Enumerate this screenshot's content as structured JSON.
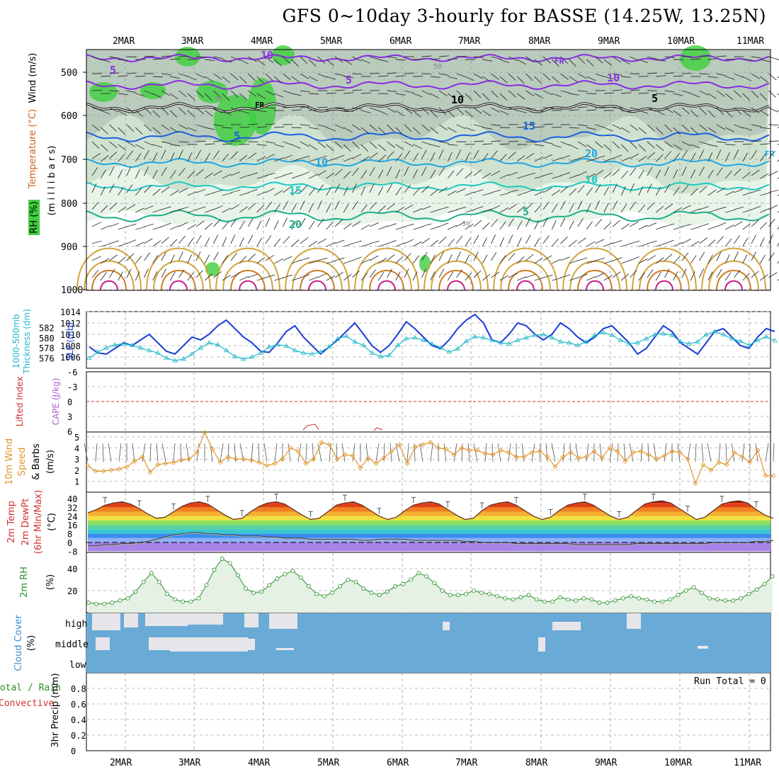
{
  "title": "GFS 0~10day 3-hourly for BASSE (14.25W, 13.25N)",
  "colors": {
    "rh": "#3ccf3c",
    "temp_iso": [
      "#8a2be2",
      "#1c5fe0",
      "#21a6e0",
      "#1ec8c0",
      "#1aaf8a",
      "#d4a23a",
      "#d07a20",
      "#c8208a"
    ],
    "slp": "#1a3ed6",
    "thick": "#1eb8c8",
    "wind10": "#e0962c",
    "rh2m": "#2a8f2a",
    "cloud_blue": "#6aaad6",
    "cloud_gray": "#e6e6ea",
    "li": "#d03030",
    "cape": "#b060d0",
    "temp_bands": [
      "#a884e8",
      "#8fb0f5",
      "#3a8cf0",
      "#3ac8d0",
      "#5ad0a0",
      "#8ce060",
      "#f0e040",
      "#f5b030",
      "#f08020",
      "#e04018",
      "#b01010"
    ]
  },
  "x_axis": {
    "labels": [
      "2MAR",
      "3MAR",
      "4MAR",
      "5MAR",
      "6MAR",
      "7MAR",
      "8MAR",
      "9MAR",
      "10MAR",
      "11MAR"
    ]
  },
  "panels": {
    "upper": {
      "ylabel_wind": "Wind (m/s)",
      "ylabel_temp": "Temperature (°C)",
      "ylabel_rh": "RH (%)",
      "ylabel_p": "(m i l l i b a r s)",
      "ticks": [
        "500",
        "600",
        "700",
        "800",
        "900",
        "1000"
      ],
      "iso_labels": [
        "10",
        "5",
        "FR",
        "5",
        "10",
        "15",
        "20",
        "10",
        "5",
        "FR",
        "5",
        "10",
        "15",
        "20",
        "10",
        "5",
        "FR"
      ],
      "rh_labels": [
        "50",
        "50",
        "30"
      ]
    },
    "slp": {
      "ylabel_thick": "Thickness (dm)",
      "ylabel_thick2": "1000-500mb",
      "ylabel_slp": "SLP (mb)",
      "left_ticks": [
        "582",
        "580",
        "578",
        "576"
      ],
      "right_ticks": [
        "1014",
        "1012",
        "1010",
        "1008",
        "1006"
      ]
    },
    "li": {
      "ylabel_li": "Lifted Index",
      "ylabel_cape": "CAPE (J/kg)",
      "ticks": [
        "-6",
        "-3",
        "0",
        "3",
        "6"
      ]
    },
    "wind10": {
      "ylabel": "10m Wind",
      "ylabel2": "Speed",
      "ylabel3": "& Barbs",
      "unit": "(m/s)",
      "ticks": [
        "5",
        "4",
        "3",
        "2",
        "1"
      ]
    },
    "temp2m": {
      "ylabel1": "2m Temp",
      "ylabel2": "2m DewPt",
      "ylabel3": "(6hr Min/Max)",
      "unit": "(°C)",
      "ticks": [
        "40",
        "32",
        "24",
        "16",
        "8",
        "0",
        "-8"
      ]
    },
    "rh2m": {
      "ylabel": "2m RH",
      "unit": "(%)",
      "ticks": [
        "40",
        "20"
      ]
    },
    "cloud": {
      "ylabel": "Cloud Cover",
      "unit": "(%)",
      "levels": [
        "high",
        "middle",
        "low"
      ]
    },
    "precip": {
      "ylabel1": "Total / Rain",
      "ylabel2": "Convective",
      "ylabel3": "3hr Precip (mm)",
      "ticks": [
        "0.8",
        "0.6",
        "0.4",
        "0.2",
        "0"
      ],
      "run_total": "Run Total = 0"
    }
  },
  "chart_data": [
    {
      "type": "line",
      "title": "SLP / 1000-500mb Thickness",
      "x_unit": "3-hourly steps from ~1MAR 12Z",
      "series": [
        {
          "name": "SLP (mb)",
          "values": [
            1007.8,
            1006.7,
            1006.5,
            1007.5,
            1008.5,
            1008.0,
            1009.0,
            1010.0,
            1008.5,
            1007.0,
            1006.5,
            1008.0,
            1009.5,
            1009.0,
            1010.0,
            1011.5,
            1012.5,
            1011.0,
            1009.5,
            1008.5,
            1007.0,
            1006.8,
            1008.5,
            1010.5,
            1011.5,
            1009.5,
            1008.0,
            1006.5,
            1007.8,
            1009.0,
            1010.5,
            1012.0,
            1010.0,
            1008.0,
            1006.8,
            1008.0,
            1010.0,
            1012.2,
            1011.0,
            1009.5,
            1008.0,
            1007.5,
            1009.0,
            1011.0,
            1012.5,
            1013.5,
            1012.0,
            1009.0,
            1008.5,
            1010.0,
            1012.0,
            1011.5,
            1010.0,
            1009.0,
            1010.0,
            1012.0,
            1011.0,
            1009.5,
            1008.5,
            1009.5,
            1011.0,
            1011.5,
            1010.0,
            1008.5,
            1006.5,
            1007.5,
            1009.5,
            1011.5,
            1010.5,
            1008.5,
            1007.5,
            1006.5,
            1008.5,
            1010.5,
            1011.0,
            1009.5,
            1008.0,
            1007.5,
            1009.5,
            1011.0,
            1010.5
          ]
        },
        {
          "name": "1000-500mb Thickness (dm)",
          "values": [
            576.0,
            577.2,
            578.0,
            578.6,
            578.8,
            578.5,
            578.0,
            577.5,
            577.0,
            576.0,
            575.5,
            575.8,
            576.8,
            578.0,
            579.0,
            578.6,
            577.5,
            576.3,
            575.8,
            576.2,
            577.0,
            578.2,
            578.6,
            578.4,
            577.5,
            577.0,
            576.8,
            577.2,
            578.2,
            579.8,
            580.3,
            579.2,
            578.5,
            577.0,
            576.3,
            576.5,
            578.5,
            579.8,
            580.0,
            579.5,
            578.8,
            578.0,
            577.2,
            577.8,
            579.3,
            580.2,
            580.0,
            579.5,
            579.0,
            578.8,
            579.5,
            580.0,
            580.5,
            580.6,
            580.0,
            579.2,
            579.0,
            578.5,
            579.2,
            580.5,
            581.0,
            580.5,
            579.5,
            578.8,
            579.0,
            579.8,
            580.6,
            580.8,
            580.5,
            579.2,
            578.8,
            579.2,
            580.6,
            581.2,
            580.6,
            579.8,
            579.3,
            578.5,
            579.5,
            580.2,
            579.4
          ]
        }
      ]
    },
    {
      "type": "line",
      "title": "10m Wind Speed (m/s)",
      "series": [
        {
          "name": "10m Wind Speed",
          "values": [
            2.4,
            1.9,
            1.9,
            2.0,
            2.1,
            2.3,
            2.8,
            3.2,
            1.8,
            2.5,
            2.6,
            2.7,
            2.9,
            3.0,
            3.6,
            5.4,
            3.9,
            2.7,
            3.2,
            3.0,
            3.0,
            2.9,
            2.7,
            2.4,
            2.6,
            3.0,
            4.0,
            3.7,
            2.6,
            3.0,
            4.5,
            4.3,
            3.0,
            3.4,
            3.3,
            2.2,
            3.1,
            2.6,
            3.1,
            3.7,
            4.3,
            2.6,
            4.1,
            4.3,
            4.5,
            4.0,
            3.9,
            3.4,
            4.0,
            3.8,
            3.8,
            3.5,
            3.4,
            3.8,
            3.6,
            3.2,
            3.2,
            3.6,
            3.7,
            3.2,
            2.3,
            3.2,
            3.6,
            3.1,
            3.2,
            3.7,
            3.1,
            4.0,
            3.7,
            2.8,
            3.6,
            3.7,
            3.4,
            3.0,
            3.3,
            3.7,
            3.6,
            3.0,
            0.8,
            2.5,
            2.0,
            2.7,
            2.5,
            3.6,
            3.2,
            2.7,
            3.8,
            1.5,
            1.5
          ]
        }
      ]
    },
    {
      "type": "area",
      "title": "2m Temp / DewPt (°C)",
      "series": [
        {
          "name": "2m Temp",
          "values": [
            27,
            30,
            34,
            36,
            37,
            35,
            31,
            26,
            22,
            23,
            28,
            33,
            36,
            37,
            35,
            30,
            25,
            21,
            22,
            28,
            33,
            36,
            37,
            35,
            30,
            25,
            21,
            22,
            28,
            34,
            36,
            37,
            34,
            29,
            24,
            21,
            23,
            29,
            34,
            36,
            37,
            35,
            30,
            25,
            21,
            22,
            29,
            34,
            36,
            37,
            34,
            29,
            24,
            21,
            23,
            29,
            34,
            36,
            37,
            34,
            29,
            24,
            21,
            23,
            29,
            35,
            37,
            38,
            36,
            31,
            26,
            21,
            23,
            29,
            35,
            37,
            38,
            36,
            30,
            25,
            22
          ]
        },
        {
          "name": "2m DewPt",
          "values": [
            -3,
            -3,
            -2,
            -2,
            -1,
            -1,
            0,
            1,
            3,
            5,
            7,
            8,
            9,
            9,
            8,
            8,
            7,
            7,
            6,
            6,
            6,
            5,
            5,
            4,
            4,
            4,
            3,
            3,
            3,
            3,
            3,
            3,
            2,
            2,
            3,
            3,
            3,
            3,
            2,
            2,
            2,
            2,
            2,
            2,
            1,
            1,
            0,
            0,
            0,
            0,
            -1,
            -1,
            -1,
            -1,
            -1,
            -1,
            -1,
            -2,
            -2,
            -2,
            -2,
            -2,
            -2,
            -2,
            -1,
            -1,
            -1,
            -1,
            -1,
            -1,
            -1,
            -1,
            -1,
            0,
            0,
            0,
            0,
            0,
            1,
            1,
            2
          ]
        }
      ]
    },
    {
      "type": "area",
      "title": "2m RH (%)",
      "series": [
        {
          "name": "2m RH",
          "values": [
            9,
            8,
            8,
            9,
            11,
            13,
            19,
            28,
            36,
            28,
            17,
            12,
            10,
            10,
            13,
            25,
            39,
            49,
            45,
            34,
            22,
            18,
            19,
            25,
            31,
            35,
            38,
            32,
            24,
            17,
            15,
            18,
            24,
            30,
            28,
            22,
            18,
            16,
            19,
            24,
            26,
            30,
            36,
            33,
            27,
            20,
            16,
            16,
            17,
            20,
            18,
            17,
            15,
            13,
            12,
            14,
            16,
            12,
            10,
            10,
            14,
            12,
            11,
            13,
            12,
            9,
            9,
            11,
            13,
            15,
            13,
            12,
            10,
            10,
            12,
            16,
            20,
            23,
            18,
            13,
            12,
            11,
            11,
            13,
            17,
            21,
            26,
            33
          ]
        }
      ]
    },
    {
      "type": "bar",
      "title": "3hr Precip (mm)",
      "ylim": [
        0,
        0.9
      ],
      "values": []
    }
  ]
}
